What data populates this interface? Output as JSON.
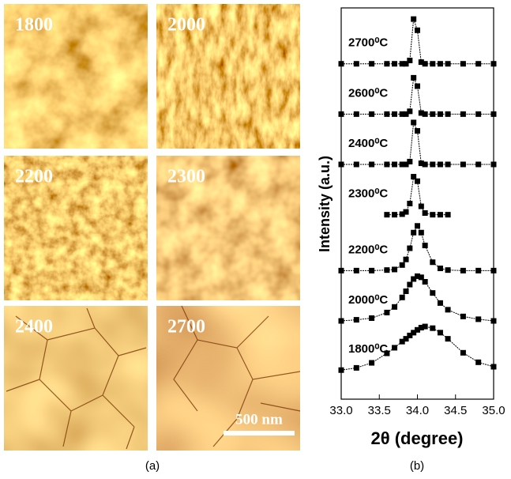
{
  "images": {
    "panels": [
      {
        "label": "1800"
      },
      {
        "label": "2000"
      },
      {
        "label": "2200"
      },
      {
        "label": "2300"
      },
      {
        "label": "2400"
      },
      {
        "label": "2700"
      }
    ],
    "scale_bar": "500 nm",
    "caption": "(a)"
  },
  "chart_data": {
    "type": "line",
    "caption": "(b)",
    "x_label": "2θ (degree)",
    "y_label": "Intensity (a.u.)",
    "x": [
      33.0,
      33.2,
      33.4,
      33.6,
      33.7,
      33.8,
      33.85,
      33.9,
      33.95,
      34.0,
      34.05,
      34.1,
      34.2,
      34.3,
      34.4,
      34.6,
      34.8,
      35.0
    ],
    "xlim": [
      33.0,
      35.0
    ],
    "ylim": [
      0,
      7
    ],
    "xticks": [
      {
        "value": 33.0,
        "label": "33.0"
      },
      {
        "value": 33.5,
        "label": "33.5"
      },
      {
        "value": 34.0,
        "label": "34.0"
      },
      {
        "value": 34.5,
        "label": "34.5"
      },
      {
        "value": 35.0,
        "label": "35.0"
      }
    ],
    "series": [
      {
        "name": "2700⁰C",
        "color": "#000000",
        "values": [
          6.0,
          6.0,
          6.0,
          6.0,
          6.0,
          6.0,
          6.0,
          6.06,
          6.8,
          6.6,
          6.03,
          6.0,
          6.0,
          6.0,
          6.0,
          6.0,
          6.0,
          6.0
        ]
      },
      {
        "name": "2600⁰C",
        "color": "#000000",
        "values": [
          5.1,
          5.1,
          5.1,
          5.1,
          5.1,
          5.1,
          5.1,
          5.15,
          5.75,
          5.6,
          5.12,
          5.1,
          5.1,
          5.1,
          5.1,
          5.1,
          5.1,
          5.1
        ]
      },
      {
        "name": "2400⁰C",
        "color": "#000000",
        "values": [
          4.2,
          4.2,
          4.2,
          4.2,
          4.2,
          4.2,
          4.2,
          4.25,
          4.95,
          4.8,
          4.22,
          4.2,
          4.2,
          4.2,
          4.2,
          4.2,
          4.2,
          4.2
        ]
      },
      {
        "name": "2300⁰C",
        "color": "#000000",
        "values": [
          null,
          null,
          null,
          3.3,
          3.3,
          3.31,
          3.35,
          3.5,
          3.98,
          3.9,
          3.45,
          3.33,
          3.3,
          3.3,
          3.3,
          null,
          null,
          null
        ]
      },
      {
        "name": "2200⁰C",
        "color": "#000000",
        "values": [
          2.3,
          2.3,
          2.3,
          2.31,
          2.32,
          2.4,
          2.5,
          2.7,
          2.98,
          3.1,
          2.98,
          2.75,
          2.45,
          2.34,
          2.31,
          2.3,
          2.3,
          2.3
        ]
      },
      {
        "name": "2000⁰C",
        "color": "#000000",
        "values": [
          1.4,
          1.42,
          1.45,
          1.55,
          1.65,
          1.82,
          1.93,
          2.05,
          2.15,
          2.2,
          2.18,
          2.1,
          1.9,
          1.72,
          1.6,
          1.48,
          1.43,
          1.4
        ]
      },
      {
        "name": "1800⁰C",
        "color": "#000000",
        "values": [
          0.52,
          0.56,
          0.65,
          0.82,
          0.92,
          1.03,
          1.08,
          1.14,
          1.19,
          1.24,
          1.28,
          1.3,
          1.27,
          1.19,
          1.08,
          0.83,
          0.66,
          0.58
        ]
      }
    ]
  }
}
